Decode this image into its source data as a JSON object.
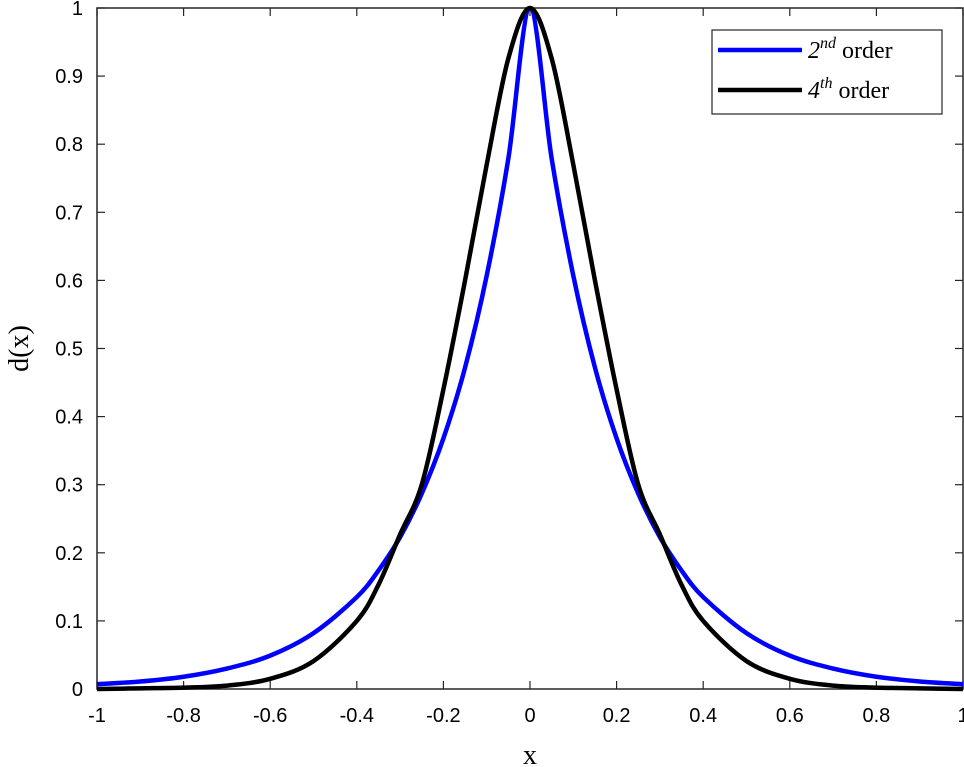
{
  "chart_data": {
    "type": "line",
    "title": "",
    "xlabel": "x",
    "ylabel": "d(x)",
    "xlim": [
      -1,
      1
    ],
    "ylim": [
      0,
      1
    ],
    "grid": false,
    "legend_position": "top-right",
    "x_ticks": [
      "-1",
      "-0.8",
      "-0.6",
      "-0.4",
      "-0.2",
      "0",
      "0.2",
      "0.4",
      "0.6",
      "0.8",
      "1"
    ],
    "y_ticks": [
      "0",
      "0.1",
      "0.2",
      "0.3",
      "0.4",
      "0.5",
      "0.6",
      "0.7",
      "0.8",
      "0.9",
      "1"
    ],
    "x": [
      -1,
      -0.9,
      -0.8,
      -0.7,
      -0.6,
      -0.5,
      -0.4,
      -0.35,
      -0.3,
      -0.25,
      -0.2,
      -0.15,
      -0.1,
      -0.05,
      0,
      0.05,
      0.1,
      0.15,
      0.2,
      0.25,
      0.3,
      0.35,
      0.4,
      0.5,
      0.6,
      0.7,
      0.8,
      0.9,
      1
    ],
    "series": [
      {
        "name_base": "2",
        "name_sup": "nd",
        "name_rest": "order",
        "color": "#0000ff",
        "values": [
          0.007,
          0.011,
          0.018,
          0.03,
          0.049,
          0.082,
          0.135,
          0.174,
          0.223,
          0.287,
          0.368,
          0.472,
          0.607,
          0.779,
          1.0,
          0.779,
          0.607,
          0.472,
          0.368,
          0.287,
          0.223,
          0.174,
          0.135,
          0.082,
          0.049,
          0.03,
          0.018,
          0.011,
          0.007
        ]
      },
      {
        "name_base": "4",
        "name_sup": "th",
        "name_rest": "order",
        "color": "#000000",
        "values": [
          0.0,
          0.001,
          0.002,
          0.005,
          0.015,
          0.041,
          0.1,
          0.153,
          0.227,
          0.3,
          0.44,
          0.6,
          0.77,
          0.926,
          1.0,
          0.926,
          0.77,
          0.6,
          0.44,
          0.3,
          0.227,
          0.153,
          0.1,
          0.041,
          0.015,
          0.005,
          0.002,
          0.001,
          0.0
        ]
      }
    ]
  }
}
